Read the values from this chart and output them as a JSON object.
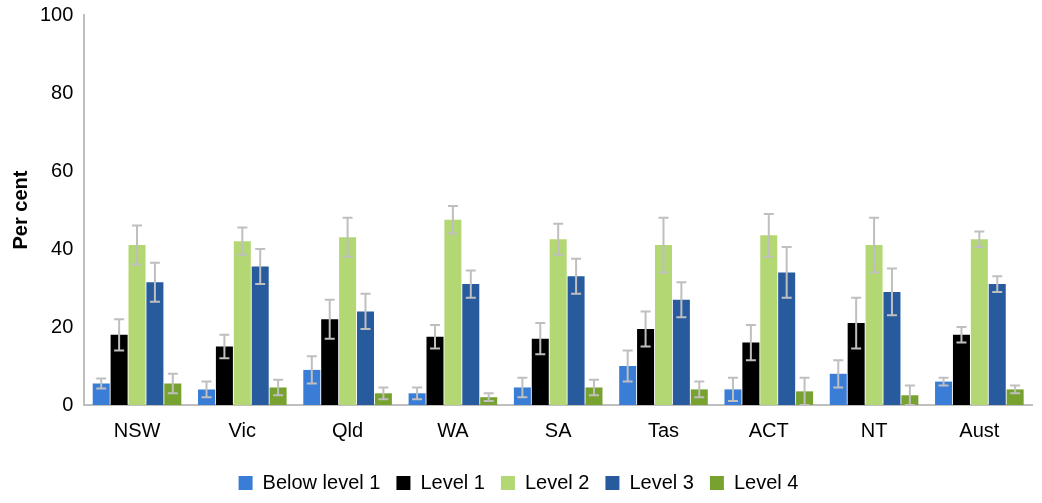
{
  "chart_data": {
    "type": "bar",
    "ylabel": "Per cent",
    "categories": [
      "NSW",
      "Vic",
      "Qld",
      "WA",
      "SA",
      "Tas",
      "ACT",
      "NT",
      "Aust"
    ],
    "series": [
      {
        "name": "Below level 1",
        "color": "#3a7dd6",
        "values": [
          5.5,
          4,
          9,
          3,
          4.5,
          10,
          4,
          8,
          6
        ],
        "errors": [
          1.3,
          2,
          3.5,
          1.5,
          2.5,
          4,
          3,
          3.5,
          1
        ]
      },
      {
        "name": "Level 1",
        "color": "#000000",
        "values": [
          18,
          15,
          22,
          17.5,
          17,
          19.5,
          16,
          21,
          18
        ],
        "errors": [
          4,
          3,
          5,
          3,
          4,
          4.5,
          4.5,
          6.5,
          2
        ]
      },
      {
        "name": "Level 2",
        "color": "#b3d873",
        "values": [
          41,
          42,
          43,
          47.5,
          42.5,
          41,
          43.5,
          41,
          42.5
        ],
        "errors": [
          5,
          3.5,
          5,
          3.5,
          4,
          7,
          5.5,
          7,
          2
        ]
      },
      {
        "name": "Level 3",
        "color": "#275b9e",
        "values": [
          31.5,
          35.5,
          24,
          31,
          33,
          27,
          34,
          29,
          31
        ],
        "errors": [
          5,
          4.5,
          4.5,
          3.5,
          4.5,
          4.5,
          6.5,
          6,
          2
        ]
      },
      {
        "name": "Level 4",
        "color": "#78a22f",
        "values": [
          5.5,
          4.5,
          3,
          2,
          4.5,
          4,
          3.5,
          2.5,
          4
        ],
        "errors": [
          2.5,
          2,
          1.5,
          1,
          2,
          2,
          3.5,
          2.5,
          1
        ]
      }
    ],
    "ylim": [
      0,
      100
    ],
    "yticks": [
      0,
      20,
      40,
      60,
      80,
      100
    ],
    "grid": false,
    "legend": "bottom"
  }
}
